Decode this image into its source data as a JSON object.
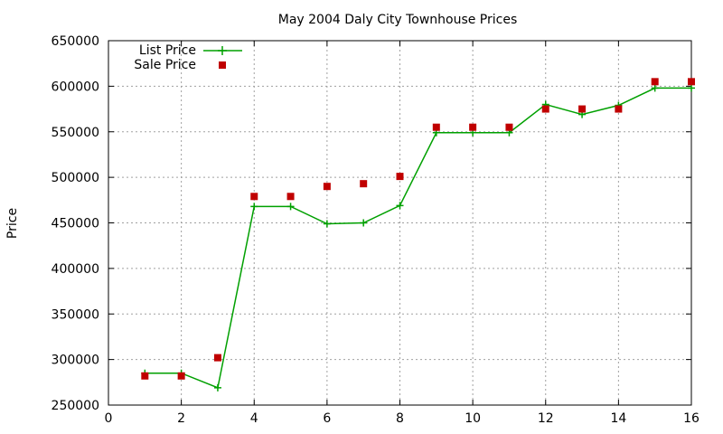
{
  "chart_data": {
    "type": "line",
    "title": "May 2004 Daly City Townhouse Prices",
    "xlabel": "",
    "ylabel": "Price",
    "xlim": [
      0,
      16
    ],
    "ylim": [
      250000,
      650000
    ],
    "xticks": [
      0,
      2,
      4,
      6,
      8,
      10,
      12,
      14,
      16
    ],
    "yticks": [
      250000,
      300000,
      350000,
      400000,
      450000,
      500000,
      550000,
      600000,
      650000
    ],
    "grid": true,
    "legend_position": "top-left",
    "series": [
      {
        "name": "List Price",
        "style": "line+cross",
        "color": "#00a000",
        "x": [
          1,
          2,
          3,
          4,
          5,
          6,
          7,
          8,
          9,
          10,
          11,
          12,
          13,
          14,
          15,
          16
        ],
        "y": [
          285000,
          285000,
          269000,
          468000,
          468000,
          449000,
          450000,
          469000,
          549000,
          549000,
          549000,
          580000,
          569000,
          579000,
          598000,
          598000
        ]
      },
      {
        "name": "Sale Price",
        "style": "square",
        "color": "#c00000",
        "x": [
          1,
          2,
          3,
          4,
          5,
          6,
          7,
          8,
          9,
          10,
          11,
          12,
          13,
          14,
          15,
          16
        ],
        "y": [
          282000,
          282000,
          302000,
          479000,
          479000,
          490000,
          493000,
          501000,
          555000,
          555000,
          555000,
          575000,
          575000,
          575000,
          605000,
          605000
        ]
      }
    ]
  }
}
